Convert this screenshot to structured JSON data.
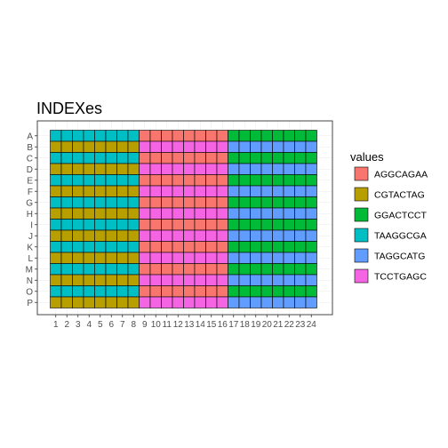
{
  "chart_data": {
    "type": "heatmap",
    "title": "INDEXes",
    "xlabel": "",
    "ylabel": "",
    "x": [
      "1",
      "2",
      "3",
      "4",
      "5",
      "6",
      "7",
      "8",
      "9",
      "10",
      "11",
      "12",
      "13",
      "14",
      "15",
      "16",
      "17",
      "18",
      "19",
      "20",
      "21",
      "22",
      "23",
      "24"
    ],
    "y": [
      "A",
      "B",
      "C",
      "D",
      "E",
      "F",
      "G",
      "H",
      "I",
      "J",
      "K",
      "L",
      "M",
      "N",
      "O",
      "P"
    ],
    "grid": true,
    "legend": {
      "title": "values",
      "position": "right",
      "entries": [
        {
          "label": "AGGCAGAA",
          "color": "#F8766D"
        },
        {
          "label": "CGTACTAG",
          "color": "#B79F00"
        },
        {
          "label": "GGACTCCT",
          "color": "#00BA38"
        },
        {
          "label": "TAAGGCGA",
          "color": "#00BFC4"
        },
        {
          "label": "TAGGCATG",
          "color": "#619CFF"
        },
        {
          "label": "TCCTGAGC",
          "color": "#F564E3"
        }
      ]
    },
    "blocks": [
      {
        "x_from": "1",
        "x_to": "8",
        "row_values": [
          "TAAGGCGA",
          "CGTACTAG"
        ]
      },
      {
        "x_from": "9",
        "x_to": "16",
        "row_values": [
          "AGGCAGAA",
          "TCCTGAGC"
        ]
      },
      {
        "x_from": "17",
        "x_to": "24",
        "row_values": [
          "GGACTCCT",
          "TAGGCATG"
        ]
      }
    ],
    "row_pattern_note": "rows alternate: odd rows (A,C,E,...) use first value, even rows (B,D,F,...) use second value"
  }
}
